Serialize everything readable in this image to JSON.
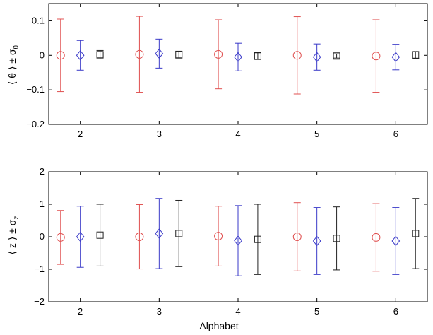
{
  "chart_data": [
    {
      "type": "scatter",
      "subtype": "errorbar",
      "ylabel": {
        "main": "⟨ θ ⟩ ± σ",
        "sub": "θ"
      },
      "xlabel": "",
      "categories": [
        "2",
        "3",
        "4",
        "5",
        "6"
      ],
      "x_ticks": [
        "2",
        "3",
        "4",
        "5",
        "6"
      ],
      "y_ticks": [
        "0.1",
        "0",
        "−0.1",
        "−0.2"
      ],
      "y_tick_values": [
        0.1,
        0,
        -0.1,
        -0.2
      ],
      "xlim": [
        1.6,
        6.4
      ],
      "ylim": [
        -0.2,
        0.15
      ],
      "grid": false,
      "series": [
        {
          "marker": "circle",
          "color": "#e05050",
          "offset": -0.25,
          "values": [
            0.0,
            0.003,
            0.003,
            0.0,
            -0.002
          ],
          "errors": [
            0.105,
            0.11,
            0.1,
            0.112,
            0.105
          ]
        },
        {
          "marker": "diamond",
          "color": "#3a3ac8",
          "offset": 0.0,
          "values": [
            0.0,
            0.005,
            -0.005,
            -0.005,
            -0.005
          ],
          "errors": [
            0.043,
            0.042,
            0.04,
            0.038,
            0.037
          ]
        },
        {
          "marker": "square",
          "color": "#222222",
          "offset": 0.25,
          "values": [
            0.002,
            0.002,
            -0.002,
            -0.002,
            0.001
          ],
          "errors": [
            0.012,
            0.01,
            0.01,
            0.006,
            0.01
          ]
        }
      ]
    },
    {
      "type": "scatter",
      "subtype": "errorbar",
      "ylabel": {
        "main": "⟨ z ⟩ ± σ",
        "sub": "z"
      },
      "xlabel": "Alphabet",
      "categories": [
        "2",
        "3",
        "4",
        "5",
        "6"
      ],
      "x_ticks": [
        "2",
        "3",
        "4",
        "5",
        "6"
      ],
      "y_ticks": [
        "2",
        "1",
        "0",
        "−1",
        "−2"
      ],
      "y_tick_values": [
        2,
        1,
        0,
        -1,
        -2
      ],
      "xlim": [
        1.6,
        6.4
      ],
      "ylim": [
        -2,
        2
      ],
      "grid": false,
      "series": [
        {
          "marker": "circle",
          "color": "#e05050",
          "offset": -0.25,
          "values": [
            -0.02,
            0.0,
            0.02,
            0.0,
            -0.02
          ],
          "errors": [
            0.83,
            0.99,
            0.92,
            1.05,
            1.04
          ]
        },
        {
          "marker": "diamond",
          "color": "#3a3ac8",
          "offset": 0.0,
          "values": [
            0.0,
            0.1,
            -0.12,
            -0.13,
            -0.13
          ],
          "errors": [
            0.94,
            1.08,
            1.08,
            1.03,
            1.03
          ]
        },
        {
          "marker": "square",
          "color": "#222222",
          "offset": 0.25,
          "values": [
            0.05,
            0.1,
            -0.08,
            -0.05,
            0.1
          ],
          "errors": [
            0.95,
            1.02,
            1.08,
            0.97,
            1.08
          ]
        }
      ]
    }
  ]
}
